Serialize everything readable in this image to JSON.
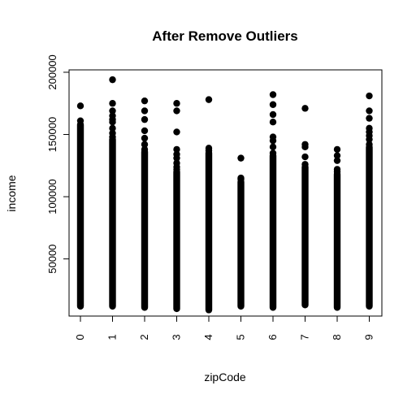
{
  "chart_data": {
    "type": "scatter",
    "title": "After Remove Outliers",
    "xlabel": "zipCode",
    "ylabel": "income",
    "x_categories": [
      "0",
      "1",
      "2",
      "3",
      "4",
      "5",
      "6",
      "7",
      "8",
      "9"
    ],
    "y_ticks": [
      50000,
      100000,
      150000,
      200000
    ],
    "y_tick_labels": [
      "50000",
      "100000",
      "150000",
      "200000"
    ],
    "ylim": [
      8000,
      198000
    ],
    "grid": false,
    "legend": "none",
    "series": [
      {
        "marker_color": "#000000",
        "groups": [
          {
            "x": "0",
            "dense_range": [
              12000,
              158000
            ],
            "points": [
              161000,
              173000
            ]
          },
          {
            "x": "1",
            "dense_range": [
              12000,
              146000
            ],
            "points": [
              148000,
              151000,
              155000,
              160000,
              162000,
              165000,
              169000,
              175000,
              194000
            ]
          },
          {
            "x": "2",
            "dense_range": [
              11000,
              136000
            ],
            "points": [
              138000,
              142000,
              147000,
              153000,
              162000,
              169000,
              177000
            ]
          },
          {
            "x": "3",
            "dense_range": [
              10000,
              120000
            ],
            "points": [
              122000,
              124000,
              127000,
              131000,
              134000,
              138000,
              152000,
              169000,
              175000
            ]
          },
          {
            "x": "4",
            "dense_range": [
              9000,
              135000
            ],
            "points": [
              137000,
              139000,
              178000
            ]
          },
          {
            "x": "5",
            "dense_range": [
              12000,
              112000
            ],
            "points": [
              114000,
              115000,
              131000
            ]
          },
          {
            "x": "6",
            "dense_range": [
              11000,
              133000
            ],
            "points": [
              135000,
              140000,
              145000,
              148000,
              160000,
              166000,
              174000,
              182000
            ]
          },
          {
            "x": "7",
            "dense_range": [
              13000,
              124000
            ],
            "points": [
              126000,
              132000,
              140000,
              142000,
              171000
            ]
          },
          {
            "x": "8",
            "dense_range": [
              11000,
              118000
            ],
            "points": [
              120000,
              122000,
              129000,
              133000,
              138000
            ]
          },
          {
            "x": "9",
            "dense_range": [
              12000,
              140000
            ],
            "points": [
              142000,
              146000,
              149000,
              152000,
              155000,
              163000,
              169000,
              181000
            ]
          }
        ]
      }
    ]
  }
}
